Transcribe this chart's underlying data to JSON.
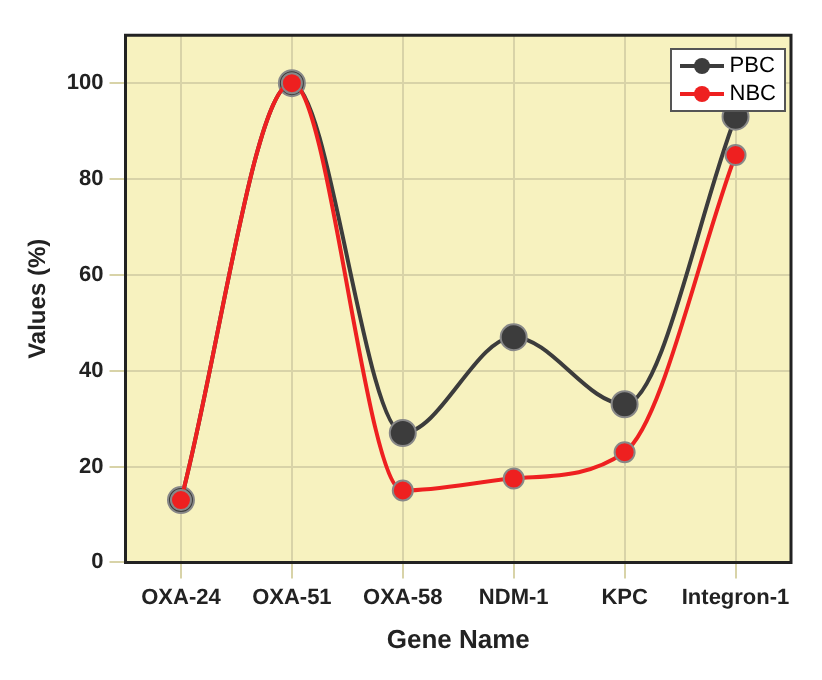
{
  "chart_data": {
    "type": "line",
    "xlabel": "Gene Name",
    "ylabel": "Values (%)",
    "categories": [
      "OXA-24",
      "OXA-51",
      "OXA-58",
      "NDM-1",
      "KPC",
      "Integron-1"
    ],
    "series": [
      {
        "name": "PBC",
        "color": "#3c3c3c",
        "values": [
          13,
          100,
          27,
          47,
          33,
          93
        ]
      },
      {
        "name": "NBC",
        "color": "#ee2020",
        "values": [
          13,
          100,
          15,
          17.5,
          23,
          85
        ]
      }
    ],
    "ylim": [
      0,
      110
    ],
    "yticks": [
      0,
      20,
      40,
      60,
      80,
      100
    ],
    "grid": true,
    "legend": "top right",
    "marker": "circle",
    "line_style": "solid"
  }
}
